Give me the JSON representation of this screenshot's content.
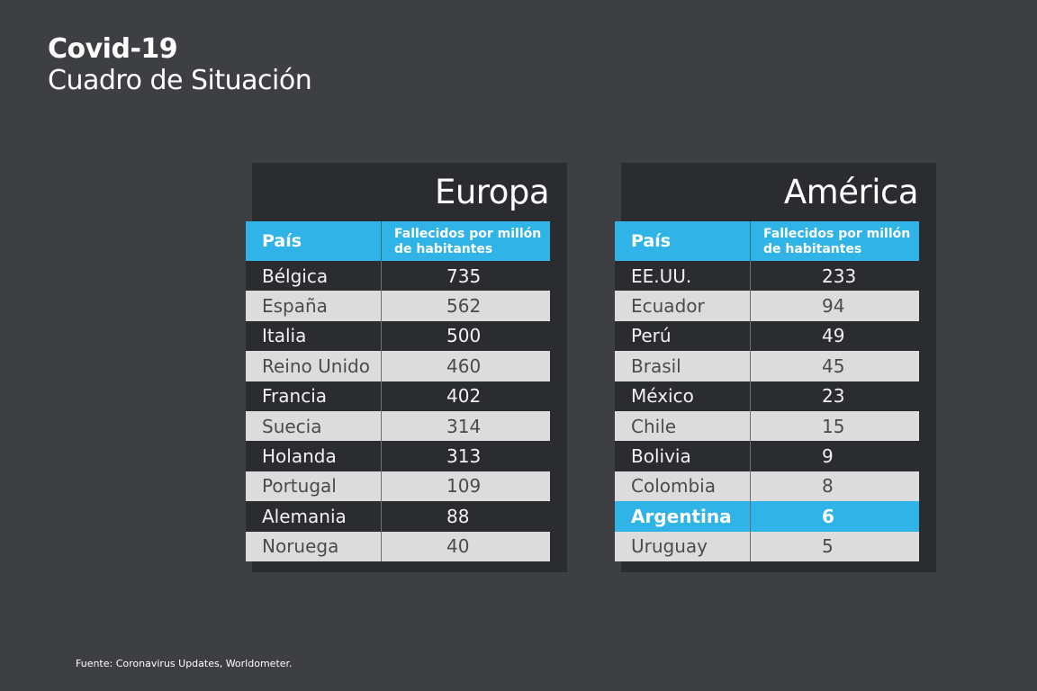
{
  "title": "Covid-19",
  "subtitle": "Cuadro de Situación",
  "source": "Fuente: Coronavirus Updates, Worldometer.",
  "colors": {
    "background": "#3e3f43",
    "panel": "#2b2c30",
    "accent": "#30b3e6",
    "light_row": "#dcdcdc"
  },
  "chart_data": [
    {
      "type": "table",
      "title": "Europa",
      "columns": [
        "País",
        "Fallecidos por millón de habitantes"
      ],
      "rows": [
        {
          "country": "Bélgica",
          "value": "735"
        },
        {
          "country": "España",
          "value": "562"
        },
        {
          "country": "Italia",
          "value": "500"
        },
        {
          "country": "Reino Unido",
          "value": "460"
        },
        {
          "country": "Francia",
          "value": "402"
        },
        {
          "country": "Suecia",
          "value": "314"
        },
        {
          "country": "Holanda",
          "value": "313"
        },
        {
          "country": "Portugal",
          "value": "109"
        },
        {
          "country": "Alemania",
          "value": "88"
        },
        {
          "country": "Noruega",
          "value": "40"
        }
      ]
    },
    {
      "type": "table",
      "title": "América",
      "columns": [
        "País",
        "Fallecidos por millón de habitantes"
      ],
      "highlighted_row": "Argentina",
      "rows": [
        {
          "country": "EE.UU.",
          "value": "233"
        },
        {
          "country": "Ecuador",
          "value": "94"
        },
        {
          "country": "Perú",
          "value": "49"
        },
        {
          "country": "Brasil",
          "value": "45"
        },
        {
          "country": "México",
          "value": "23"
        },
        {
          "country": "Chile",
          "value": "15"
        },
        {
          "country": "Bolivia",
          "value": "9"
        },
        {
          "country": "Colombia",
          "value": "8"
        },
        {
          "country": "Argentina",
          "value": "6"
        },
        {
          "country": "Uruguay",
          "value": "5"
        }
      ]
    }
  ]
}
